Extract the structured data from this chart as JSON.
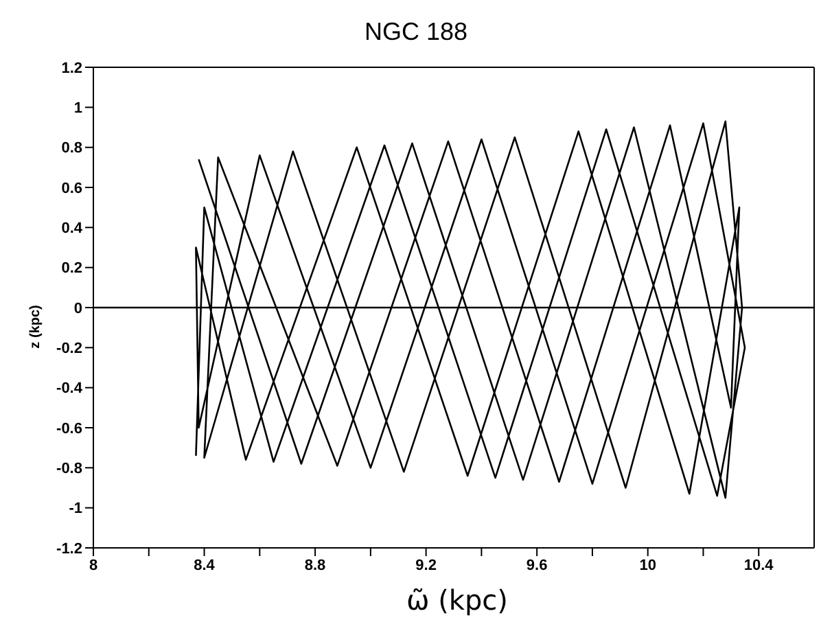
{
  "chart_data": {
    "type": "line",
    "title": "NGC 188",
    "xlabel": "ω̃ (kpc)",
    "ylabel": "z (kpc)",
    "xlim": [
      8,
      10.6
    ],
    "xticks": [
      8,
      {
        "value": 8.2,
        "label": null
      },
      8.4,
      {
        "value": 8.6,
        "label": null
      },
      8.8,
      {
        "value": 9.0,
        "label": null
      },
      9.2,
      {
        "value": 9.4,
        "label": null
      },
      9.6,
      {
        "value": 9.8,
        "label": null
      },
      10,
      {
        "value": 10.2,
        "label": null
      },
      10.4
    ],
    "ylim": [
      -1.2,
      1.2
    ],
    "yticks": [
      -1.2,
      -1,
      -0.8,
      -0.6,
      -0.4,
      -0.2,
      0,
      0.2,
      0.4,
      0.6,
      0.8,
      1,
      1.2
    ],
    "marker": "none",
    "line_style": "solid",
    "ref_lines": [
      {
        "axis": "y",
        "value": 0,
        "color": "#000000"
      }
    ],
    "series": [
      {
        "color": "#000000",
        "x": [
          8.38,
          8.75,
          9.15,
          9.55,
          9.95,
          10.28,
          10.34,
          10.28,
          9.92,
          9.52,
          9.12,
          8.72,
          8.4,
          8.45,
          8.88,
          9.28,
          9.68,
          10.08,
          10.3,
          10.33,
          10.15,
          9.75,
          9.35,
          8.95,
          8.55,
          8.37,
          8.38,
          8.6,
          9.0,
          9.4,
          9.8,
          10.2,
          10.35,
          10.25,
          9.85,
          9.45,
          9.05,
          8.65,
          8.4,
          8.37
        ],
        "values": [
          0.74,
          -0.78,
          0.82,
          -0.86,
          0.9,
          -0.95,
          0.0,
          0.93,
          -0.9,
          0.85,
          -0.82,
          0.78,
          -0.75,
          0.75,
          -0.79,
          0.83,
          -0.87,
          0.91,
          -0.5,
          0.5,
          -0.93,
          0.88,
          -0.84,
          0.8,
          -0.76,
          0.3,
          -0.6,
          0.76,
          -0.8,
          0.84,
          -0.88,
          0.92,
          -0.2,
          -0.94,
          0.89,
          -0.85,
          0.81,
          -0.77,
          0.5,
          -0.74
        ]
      }
    ]
  }
}
